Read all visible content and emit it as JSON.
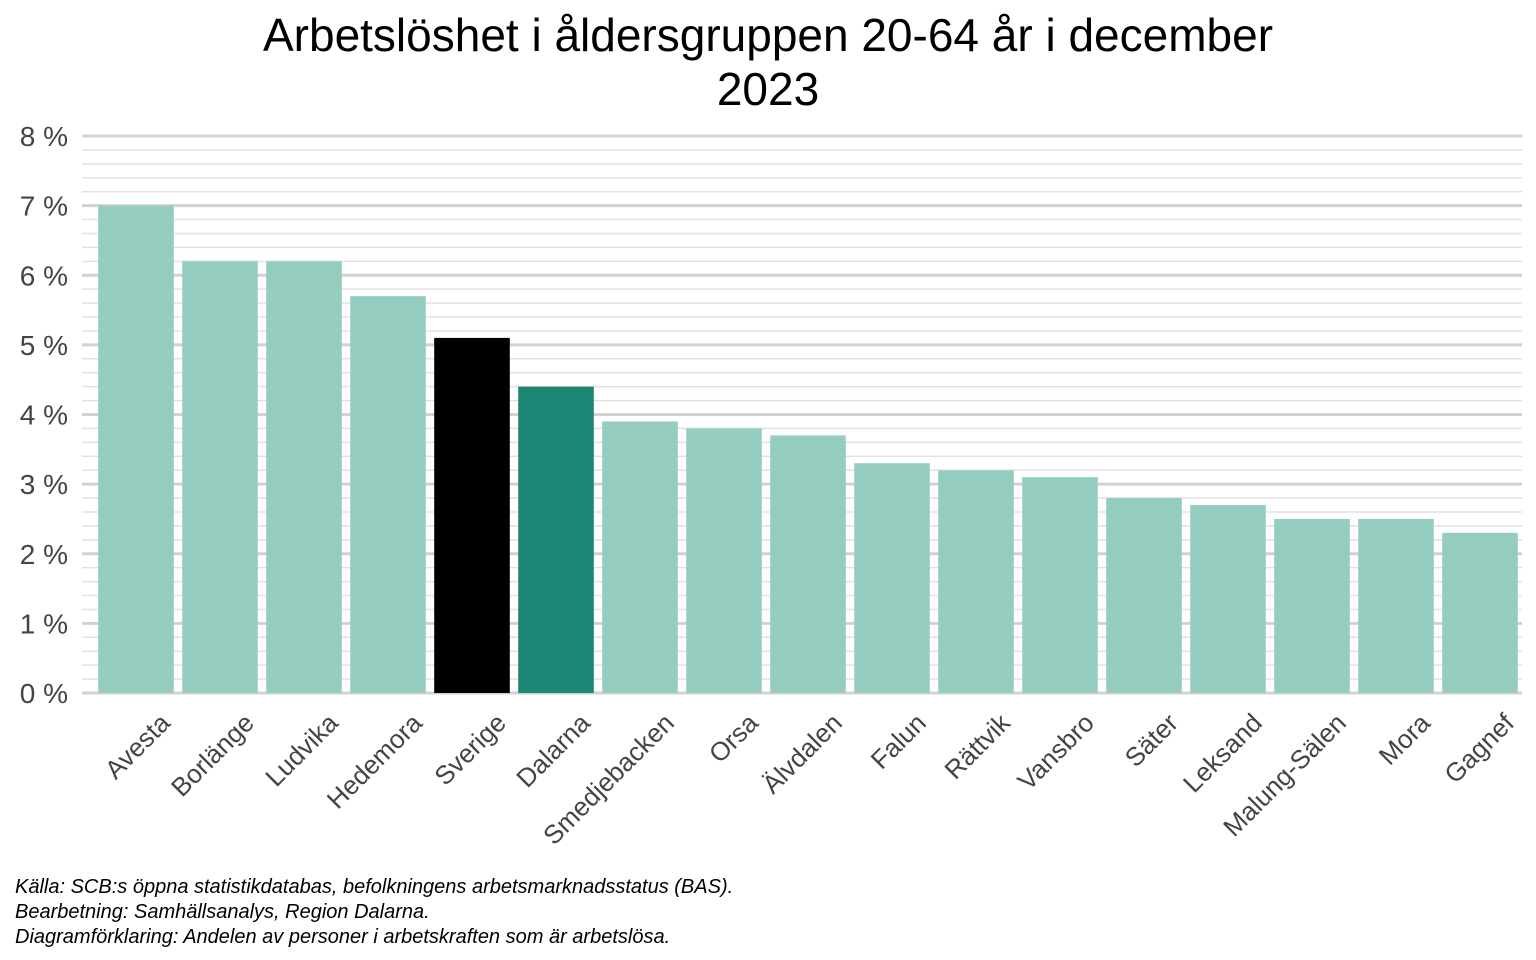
{
  "chart_data": {
    "type": "bar",
    "title": [
      "Arbetslöshet i åldersgruppen 20-64 år i december",
      "2023"
    ],
    "categories": [
      "Avesta",
      "Borlänge",
      "Ludvika",
      "Hedemora",
      "Sverige",
      "Dalarna",
      "Smedjebacken",
      "Orsa",
      "Älvdalen",
      "Falun",
      "Rättvik",
      "Vansbro",
      "Säter",
      "Leksand",
      "Malung-Sälen",
      "Mora",
      "Gagnef"
    ],
    "values": [
      7.0,
      6.2,
      6.2,
      5.7,
      5.1,
      4.4,
      3.9,
      3.8,
      3.7,
      3.3,
      3.2,
      3.1,
      2.8,
      2.7,
      2.5,
      2.5,
      2.3
    ],
    "bar_colors": [
      "#94cdbf",
      "#94cdbf",
      "#94cdbf",
      "#94cdbf",
      "#000000",
      "#1b8774",
      "#94cdbf",
      "#94cdbf",
      "#94cdbf",
      "#94cdbf",
      "#94cdbf",
      "#94cdbf",
      "#94cdbf",
      "#94cdbf",
      "#94cdbf",
      "#94cdbf",
      "#94cdbf"
    ],
    "ylim": [
      0,
      8
    ],
    "yticks": [
      0,
      1,
      2,
      3,
      4,
      5,
      6,
      7,
      8
    ],
    "ytick_labels": [
      "0 %",
      "1 %",
      "2 %",
      "3 %",
      "4 %",
      "5 %",
      "6 %",
      "7 %",
      "8 %"
    ],
    "minor_grid_step": 0.2,
    "grid": true,
    "xlabel": "",
    "ylabel": "",
    "legend": "none",
    "colors": {
      "default_bar": "#94cdbf",
      "national_bar": "#000000",
      "region_bar": "#1b8774",
      "grid_major": "#d2d2d2",
      "grid_minor": "#e2e2e2",
      "axis_text": "#444444"
    }
  },
  "caption": [
    "Källa: SCB:s öppna statistikdatabas, befolkningens arbetsmarknadsstatus (BAS).",
    "Bearbetning: Samhällsanalys, Region Dalarna.",
    "Diagramförklaring: Andelen av personer i arbetskraften som är arbetslösa."
  ]
}
